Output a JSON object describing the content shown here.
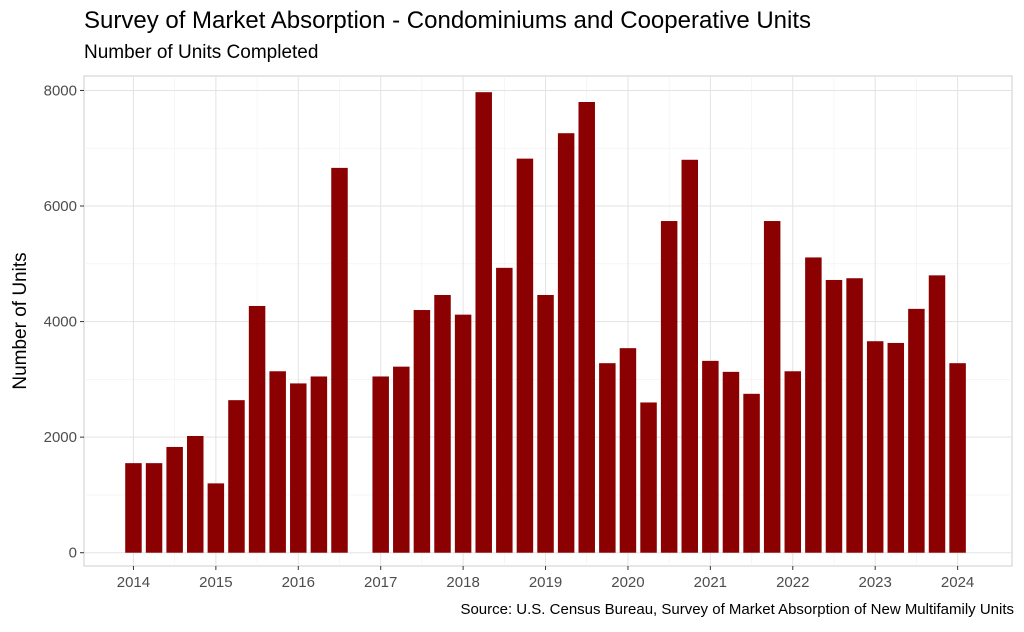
{
  "chart_data": {
    "type": "bar",
    "title": "Survey of Market Absorption - Condominiums and Cooperative Units",
    "subtitle": "Number of Units Completed",
    "caption": "Source: U.S. Census Bureau, Survey of Market Absorption of New Multifamily Units",
    "xlabel": "",
    "ylabel": "Number of Units",
    "xlim": [
      2013.4,
      2024.66
    ],
    "ylim": [
      -230,
      8250
    ],
    "x_ticks": [
      "2014",
      "2015",
      "2016",
      "2017",
      "2018",
      "2019",
      "2020",
      "2021",
      "2022",
      "2023",
      "2024"
    ],
    "y_ticks": [
      "0",
      "2000",
      "4000",
      "6000",
      "8000"
    ],
    "grid": true,
    "bar_color": "#8b0000",
    "x": [
      2014.0,
      2014.25,
      2014.5,
      2014.75,
      2015.0,
      2015.25,
      2015.5,
      2015.75,
      2016.0,
      2016.25,
      2016.5,
      2017.0,
      2017.25,
      2017.5,
      2017.75,
      2018.0,
      2018.25,
      2018.5,
      2018.75,
      2019.0,
      2019.25,
      2019.5,
      2019.75,
      2020.0,
      2020.25,
      2020.5,
      2020.75,
      2021.0,
      2021.25,
      2021.5,
      2021.75,
      2022.0,
      2022.25,
      2022.5,
      2022.75,
      2023.0,
      2023.25,
      2023.5,
      2023.75,
      2024.0
    ],
    "values": [
      1550,
      1550,
      1830,
      2020,
      1200,
      2640,
      4270,
      3140,
      2930,
      3050,
      6660,
      3050,
      3220,
      4200,
      4460,
      4120,
      7970,
      4930,
      6820,
      4460,
      7260,
      7800,
      3280,
      3540,
      2600,
      5740,
      6800,
      3320,
      3130,
      2750,
      5740,
      3140,
      5110,
      4720,
      4750,
      3660,
      3630,
      4220,
      4800,
      3280
    ]
  }
}
